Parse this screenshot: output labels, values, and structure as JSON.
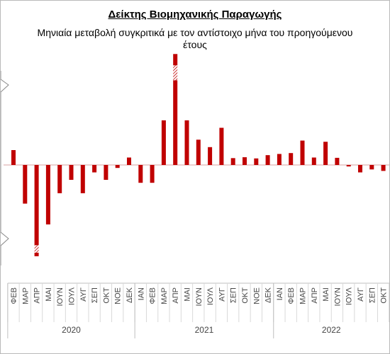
{
  "chart_data": {
    "type": "bar",
    "title": "Δείκτης Βιομηχανικής Παραγωγής",
    "subtitle": "Μηνιαία μεταβολή συγκριτικά με τον αντίστοιχο μήνα του προηγούμενου έτους",
    "categories": [
      "ΦΕΒ",
      "ΜΑΡ",
      "ΑΠΡ",
      "ΜΑΙ",
      "ΙΟΥΝ",
      "ΙΟΥΛ",
      "ΑΥΓ",
      "ΣΕΠ",
      "ΟΚΤ",
      "ΝΟΕ",
      "ΔΕΚ",
      "ΙΑΝ",
      "ΦΕΒ",
      "ΜΑΡ",
      "ΑΠΡ",
      "ΜΑΙ",
      "ΙΟΥΝ",
      "ΙΟΥΛ",
      "ΑΥΓ",
      "ΣΕΠ",
      "ΟΚΤ",
      "ΝΟΕ",
      "ΔΕΚ",
      "ΙΑΝ",
      "ΦΕΒ",
      "ΜΑΡ",
      "ΑΠΡ",
      "ΜΑΙ",
      "ΙΟΥΝ",
      "ΙΟΥΛ",
      "ΑΥΓ",
      "ΣΕΠ",
      "ΟΚΤ"
    ],
    "values": [
      5.0,
      -13.0,
      -29.0,
      -20.0,
      -9.5,
      -5.0,
      -9.5,
      -2.5,
      -5.0,
      -1.0,
      2.5,
      -6.0,
      -6.0,
      15.0,
      31.0,
      15.0,
      8.5,
      6.0,
      12.5,
      2.3,
      2.6,
      2.2,
      3.3,
      3.7,
      4.0,
      8.2,
      2.5,
      7.8,
      2.4,
      -0.5,
      -2.5,
      -1.5,
      -2.0
    ],
    "years": [
      {
        "label": "2020",
        "start": 0,
        "end": 10
      },
      {
        "label": "2021",
        "start": 11,
        "end": 22
      },
      {
        "label": "2022",
        "start": 23,
        "end": 32
      }
    ],
    "axis_breaks": [
      {
        "index": 2,
        "shown": -27,
        "extra": 2.5
      },
      {
        "index": 14,
        "shown": 28.5,
        "extra": 5
      }
    ],
    "ylim": [
      -32,
      32
    ],
    "bar_color": "#c00000",
    "zero_line_color": "#d9a0a0",
    "grid": false,
    "legend": "none"
  }
}
